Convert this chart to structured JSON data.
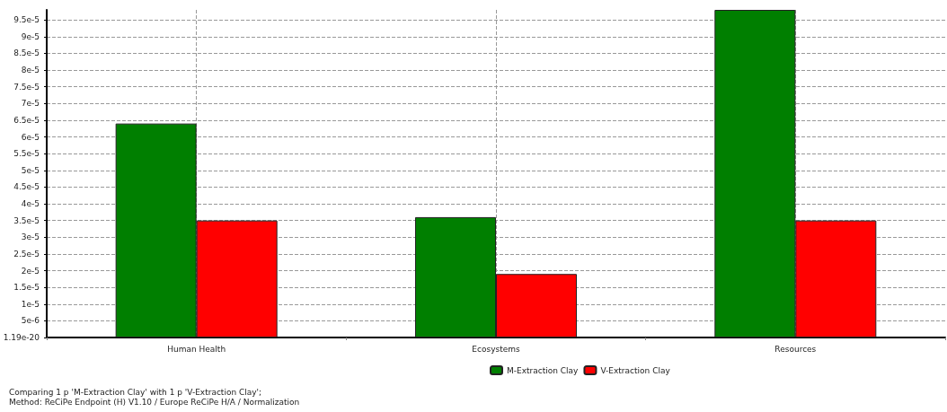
{
  "chart_data": {
    "type": "bar",
    "categories": [
      "Human Health",
      "Ecosystems",
      "Resources"
    ],
    "series": [
      {
        "name": "M-Extraction Clay",
        "color": "#007f00",
        "values": [
          6.4e-05,
          3.6e-05,
          9.8e-05
        ]
      },
      {
        "name": "V-Extraction Clay",
        "color": "#ff0000",
        "values": [
          3.5e-05,
          1.9e-05,
          3.5e-05
        ]
      }
    ],
    "ylim": [
      1.19e-20,
      9.8e-05
    ],
    "yticks": [
      {
        "value": 1.19e-20,
        "label": "1.19e-20"
      },
      {
        "value": 5e-06,
        "label": "5e-6"
      },
      {
        "value": 1e-05,
        "label": "1e-5"
      },
      {
        "value": 1.5e-05,
        "label": "1.5e-5"
      },
      {
        "value": 2e-05,
        "label": "2e-5"
      },
      {
        "value": 2.5e-05,
        "label": "2.5e-5"
      },
      {
        "value": 3e-05,
        "label": "3e-5"
      },
      {
        "value": 3.5e-05,
        "label": "3.5e-5"
      },
      {
        "value": 4e-05,
        "label": "4e-5"
      },
      {
        "value": 4.5e-05,
        "label": "4.5e-5"
      },
      {
        "value": 5e-05,
        "label": "5e-5"
      },
      {
        "value": 5.5e-05,
        "label": "5.5e-5"
      },
      {
        "value": 6e-05,
        "label": "6e-5"
      },
      {
        "value": 6.5e-05,
        "label": "6.5e-5"
      },
      {
        "value": 7e-05,
        "label": "7e-5"
      },
      {
        "value": 7.5e-05,
        "label": "7.5e-5"
      },
      {
        "value": 8e-05,
        "label": "8e-5"
      },
      {
        "value": 8.5e-05,
        "label": "8.5e-5"
      },
      {
        "value": 9e-05,
        "label": "9e-5"
      },
      {
        "value": 9.5e-05,
        "label": "9.5e-5"
      }
    ],
    "grid": true,
    "legend": "bottom",
    "annotations": [
      "Comparing 1 p 'M-Extraction Clay' with 1 p 'V-Extraction Clay';",
      "Method: ReCiPe Endpoint (H) V1.10 / Europe ReCiPe H/A / Normalization"
    ]
  }
}
